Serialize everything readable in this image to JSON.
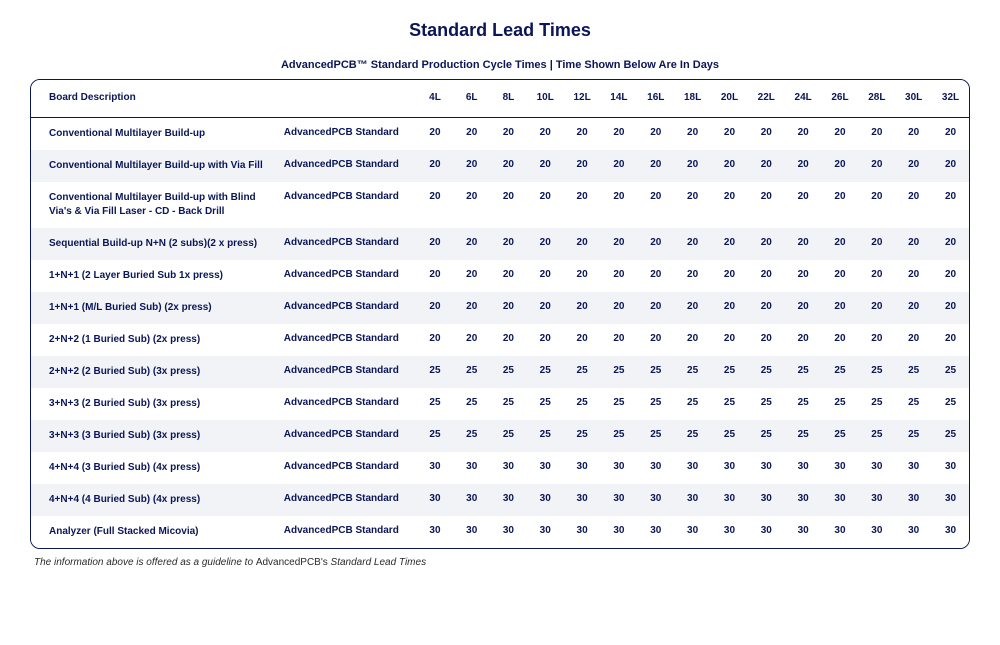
{
  "title": "Standard Lead Times",
  "subtitle": "AdvancedPCB™ Standard Production Cycle Times | Time Shown Below Are In Days",
  "columns": {
    "desc": "Board Description",
    "layers": [
      "4L",
      "6L",
      "8L",
      "10L",
      "12L",
      "14L",
      "16L",
      "18L",
      "20L",
      "22L",
      "24L",
      "26L",
      "28L",
      "30L",
      "32L"
    ]
  },
  "type_label": "AdvancedPCB Standard",
  "rows": [
    {
      "desc": "Conventional Multilayer Build-up",
      "vals": [
        20,
        20,
        20,
        20,
        20,
        20,
        20,
        20,
        20,
        20,
        20,
        20,
        20,
        20,
        20
      ]
    },
    {
      "desc": "Conventional Multilayer Build-up with Via Fill",
      "vals": [
        20,
        20,
        20,
        20,
        20,
        20,
        20,
        20,
        20,
        20,
        20,
        20,
        20,
        20,
        20
      ]
    },
    {
      "desc": "Conventional Multilayer Build-up with Blind Via's & Via Fill Laser - CD - Back Drill",
      "vals": [
        20,
        20,
        20,
        20,
        20,
        20,
        20,
        20,
        20,
        20,
        20,
        20,
        20,
        20,
        20
      ]
    },
    {
      "desc": "Sequential Build-up N+N (2 subs)(2 x press)",
      "vals": [
        20,
        20,
        20,
        20,
        20,
        20,
        20,
        20,
        20,
        20,
        20,
        20,
        20,
        20,
        20
      ]
    },
    {
      "desc": "1+N+1 (2 Layer Buried Sub 1x press)",
      "vals": [
        20,
        20,
        20,
        20,
        20,
        20,
        20,
        20,
        20,
        20,
        20,
        20,
        20,
        20,
        20
      ]
    },
    {
      "desc": "1+N+1 (M/L Buried Sub) (2x press)",
      "vals": [
        20,
        20,
        20,
        20,
        20,
        20,
        20,
        20,
        20,
        20,
        20,
        20,
        20,
        20,
        20
      ]
    },
    {
      "desc": "2+N+2 (1 Buried Sub) (2x press)",
      "vals": [
        20,
        20,
        20,
        20,
        20,
        20,
        20,
        20,
        20,
        20,
        20,
        20,
        20,
        20,
        20
      ]
    },
    {
      "desc": "2+N+2 (2 Buried Sub) (3x press)",
      "vals": [
        25,
        25,
        25,
        25,
        25,
        25,
        25,
        25,
        25,
        25,
        25,
        25,
        25,
        25,
        25
      ]
    },
    {
      "desc": "3+N+3 (2 Buried Sub) (3x press)",
      "vals": [
        25,
        25,
        25,
        25,
        25,
        25,
        25,
        25,
        25,
        25,
        25,
        25,
        25,
        25,
        25
      ]
    },
    {
      "desc": "3+N+3 (3 Buried Sub) (3x press)",
      "vals": [
        25,
        25,
        25,
        25,
        25,
        25,
        25,
        25,
        25,
        25,
        25,
        25,
        25,
        25,
        25
      ]
    },
    {
      "desc": "4+N+4 (3 Buried Sub) (4x press)",
      "vals": [
        30,
        30,
        30,
        30,
        30,
        30,
        30,
        30,
        30,
        30,
        30,
        30,
        30,
        30,
        30
      ]
    },
    {
      "desc": "4+N+4 (4 Buried Sub) (4x press)",
      "vals": [
        30,
        30,
        30,
        30,
        30,
        30,
        30,
        30,
        30,
        30,
        30,
        30,
        30,
        30,
        30
      ]
    },
    {
      "desc": "Analyzer (Full Stacked Micovia)",
      "vals": [
        30,
        30,
        30,
        30,
        30,
        30,
        30,
        30,
        30,
        30,
        30,
        30,
        30,
        30,
        30
      ]
    }
  ],
  "footnote_prefix": "The information above is offered as a guideline to ",
  "footnote_bold": "AdvancedPCB's ",
  "footnote_suffix": "Standard Lead Times",
  "colors": {
    "primary": "#0a1657",
    "row_alt": "#f2f3f7",
    "background": "#ffffff"
  },
  "fonts": {
    "title_size": 18,
    "subtitle_size": 11,
    "cell_size": 10,
    "footnote_size": 10
  }
}
